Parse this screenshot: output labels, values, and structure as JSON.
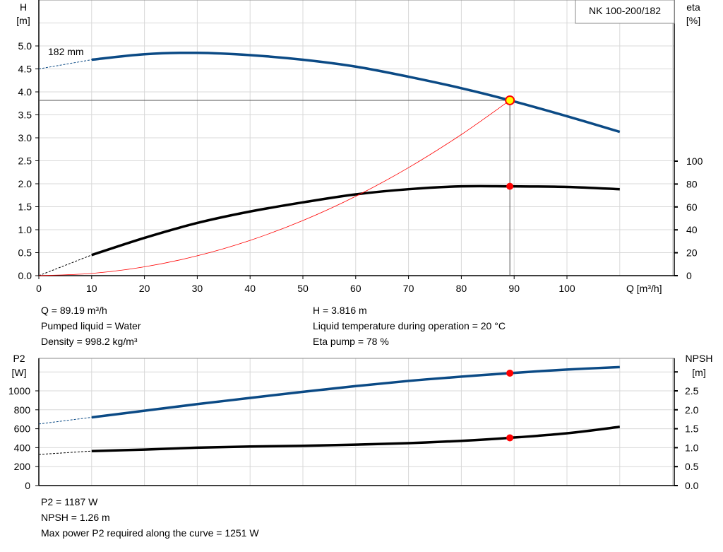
{
  "chart_data": [
    {
      "type": "line",
      "title_box": "NK 100-200/182",
      "xlabel": "Q [m³/h]",
      "xlim": [
        0,
        120
      ],
      "xticks": [
        0,
        10,
        20,
        30,
        40,
        50,
        60,
        70,
        80,
        90,
        100
      ],
      "ylabel_left": [
        "H",
        "[m]"
      ],
      "ylim_left": [
        0,
        6
      ],
      "yticks_left": [
        "0.0",
        "0.5",
        "1.0",
        "1.5",
        "2.0",
        "2.5",
        "3.0",
        "3.5",
        "4.0",
        "4.5",
        "5.0"
      ],
      "ylabel_right": [
        "eta",
        "[%]"
      ],
      "yticks_right": [
        "0",
        "20",
        "40",
        "60",
        "80",
        "100"
      ],
      "grid": true,
      "curve_label": "182 mm",
      "series": [
        {
          "key": "H",
          "axis": "left",
          "color": "#0b4a85",
          "x": [
            10,
            20,
            30,
            40,
            50,
            60,
            70,
            80,
            89.19,
            100,
            110
          ],
          "y": [
            4.7,
            4.82,
            4.85,
            4.8,
            4.7,
            4.55,
            4.33,
            4.08,
            3.816,
            3.47,
            3.13
          ],
          "extrapolated": {
            "x": [
              0,
              10
            ],
            "y": [
              4.5,
              4.7
            ]
          }
        },
        {
          "key": "eta",
          "axis": "right",
          "color": "#000000",
          "x": [
            10,
            20,
            30,
            40,
            50,
            60,
            70,
            80,
            89.19,
            100,
            110
          ],
          "y": [
            18,
            33,
            46,
            56,
            64,
            71,
            75.5,
            78,
            78,
            77.5,
            75.5
          ],
          "extrapolated": {
            "x": [
              0,
              10
            ],
            "y": [
              0,
              18
            ]
          }
        },
        {
          "key": "system",
          "axis": "left",
          "color": "#ff0000",
          "x": [
            0,
            10,
            20,
            30,
            40,
            50,
            60,
            70,
            80,
            89.19
          ],
          "y": [
            0,
            0.048,
            0.192,
            0.432,
            0.768,
            1.2,
            1.727,
            2.351,
            3.071,
            3.816
          ]
        }
      ],
      "operating_point": {
        "Q": 89.19,
        "H": 3.816,
        "eta": 78
      }
    },
    {
      "type": "line",
      "xlim": [
        0,
        120
      ],
      "ylabel_left": [
        "P2",
        "[W]"
      ],
      "ylim_left": [
        0,
        1343
      ],
      "yticks_left": [
        "0",
        "200",
        "400",
        "600",
        "800",
        "1000"
      ],
      "ylabel_right": [
        "NPSH",
        "[m]"
      ],
      "yticks_right": [
        "0.0",
        "0.5",
        "1.0",
        "1.5",
        "2.0",
        "2.5"
      ],
      "grid": true,
      "series": [
        {
          "key": "P2",
          "axis": "left",
          "color": "#0b4a85",
          "x": [
            10,
            20,
            30,
            40,
            50,
            60,
            70,
            80,
            89.19,
            100,
            110
          ],
          "y": [
            720,
            790,
            860,
            925,
            990,
            1050,
            1105,
            1150,
            1187,
            1225,
            1251
          ],
          "extrapolated": {
            "x": [
              0,
              10
            ],
            "y": [
              650,
              720
            ]
          }
        },
        {
          "key": "NPSH",
          "axis": "right",
          "color": "#000000",
          "x": [
            10,
            20,
            30,
            40,
            50,
            60,
            70,
            80,
            89.19,
            100,
            110
          ],
          "y": [
            0.91,
            0.95,
            1.0,
            1.03,
            1.05,
            1.08,
            1.12,
            1.18,
            1.26,
            1.38,
            1.55
          ],
          "extrapolated": {
            "x": [
              0,
              10
            ],
            "y": [
              0.82,
              0.91
            ]
          }
        }
      ],
      "operating_point": {
        "Q": 89.19,
        "P2": 1187,
        "NPSH": 1.26
      }
    }
  ],
  "info_top_left": [
    "Q = 89.19 m³/h",
    "Pumped liquid = Water",
    "Density = 998.2 kg/m³"
  ],
  "info_top_right": [
    "H = 3.816 m",
    "Liquid temperature during operation = 20 °C",
    "Eta pump = 78 %"
  ],
  "info_bottom": [
    "P2 = 1187 W",
    "NPSH = 1.26 m",
    "Max power P2 required along the curve = 1251 W"
  ],
  "colors": {
    "blue": "#0b4a85",
    "red": "#ff0000",
    "marker_fill": "#ffff00",
    "grid": "#d8d8d8"
  }
}
